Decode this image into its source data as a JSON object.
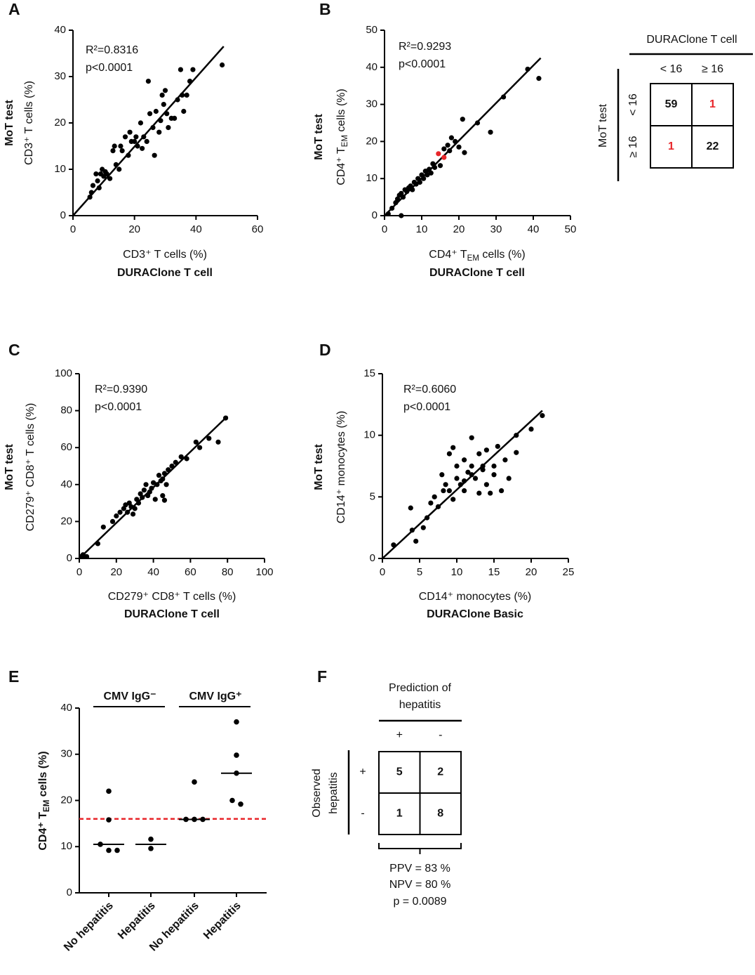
{
  "chart_data": [
    {
      "type": "scatter",
      "panel": "A",
      "annotations": [
        "R²=0.8316",
        "p<0.0001"
      ],
      "ylabel": [
        "MoT test",
        "CD3⁺ T cells (%)"
      ],
      "xlabel": [
        "CD3⁺ T cells (%)",
        "DURAClone T cell"
      ],
      "xlim": [
        0,
        60
      ],
      "xticks": [
        0,
        20,
        40,
        60
      ],
      "ylim": [
        0,
        40
      ],
      "yticks": [
        0,
        10,
        20,
        30,
        40
      ],
      "fit": {
        "x": [
          0,
          49
        ],
        "y": [
          0,
          36.5
        ]
      },
      "series": [
        {
          "color": "#000000",
          "x": [
            5.5,
            6,
            6.5,
            7.5,
            8,
            8.5,
            9,
            9.5,
            10,
            10.5,
            11,
            12,
            13,
            13.5,
            14,
            15,
            15.5,
            16,
            17,
            18,
            18.5,
            19,
            20,
            20.5,
            21,
            22,
            22.5,
            23,
            24,
            24.5,
            25,
            26,
            26.5,
            27,
            28,
            28.5,
            29,
            29.5,
            30,
            30.5,
            31,
            32,
            33,
            34,
            35,
            35.5,
            36,
            37,
            38,
            39,
            48.5
          ],
          "y": [
            4,
            5,
            6.5,
            9,
            7.5,
            6,
            9,
            10,
            8.5,
            9.5,
            9,
            8,
            14,
            15,
            11,
            10,
            15,
            14,
            17,
            13,
            18,
            16,
            16,
            17,
            15,
            20,
            14.5,
            17,
            16,
            29,
            22,
            19,
            13,
            22.5,
            18,
            20.5,
            26,
            24,
            27,
            22,
            19,
            21,
            21,
            25,
            31.5,
            26,
            22.5,
            26,
            29,
            31.5,
            32.5
          ]
        }
      ]
    },
    {
      "type": "scatter",
      "panel": "B",
      "annotations": [
        "R²=0.9293",
        "p<0.0001"
      ],
      "ylabel": [
        "MoT test",
        {
          "pre": "CD4⁺ T",
          "sub": "EM",
          "post": " cells (%)"
        }
      ],
      "xlabel": [
        {
          "pre": "CD4⁺ T",
          "sub": "EM",
          "post": " cells (%)"
        },
        "DURAClone T cell"
      ],
      "xlim": [
        0,
        50
      ],
      "xticks": [
        0,
        10,
        20,
        30,
        40,
        50
      ],
      "ylim": [
        0,
        50
      ],
      "yticks": [
        0,
        10,
        20,
        30,
        40,
        50
      ],
      "fit": {
        "x": [
          0,
          42
        ],
        "y": [
          0,
          42.5
        ]
      },
      "series": [
        {
          "color": "#000000",
          "x": [
            1,
            2,
            3,
            3.5,
            4,
            4.5,
            5,
            5.5,
            6,
            6.5,
            7,
            7.5,
            8,
            8.5,
            9,
            9.5,
            10,
            10.5,
            11,
            11.5,
            12,
            12.5,
            13,
            13.5,
            15,
            16,
            17,
            17.5,
            18,
            19,
            20,
            21,
            21.5,
            25,
            28.5,
            32,
            38.5,
            41.5,
            4.5
          ],
          "y": [
            0.5,
            2,
            3.5,
            4.5,
            5.5,
            6,
            5,
            7,
            6.5,
            7.5,
            8,
            7,
            9,
            8.5,
            10,
            9,
            11,
            10,
            12,
            11,
            12.5,
            11.5,
            14,
            13,
            13.5,
            18,
            19,
            17.5,
            21,
            20,
            18.5,
            26,
            17,
            25,
            22.5,
            32,
            39.5,
            37,
            0
          ]
        },
        {
          "color": "#e8262a",
          "x": [
            14.5,
            16
          ],
          "y": [
            16.7,
            15.7
          ]
        }
      ]
    },
    {
      "type": "scatter",
      "panel": "C",
      "annotations": [
        "R²=0.9390",
        "p<0.0001"
      ],
      "ylabel": [
        "MoT test",
        "CD279⁺ CD8⁺ T cells (%)"
      ],
      "xlabel": [
        "CD279⁺ CD8⁺ T cells (%)",
        "DURAClone T cell"
      ],
      "xlim": [
        0,
        100
      ],
      "xticks": [
        0,
        20,
        40,
        60,
        80,
        100
      ],
      "ylim": [
        0,
        100
      ],
      "yticks": [
        0,
        20,
        40,
        60,
        80,
        100
      ],
      "fit": {
        "x": [
          0,
          80
        ],
        "y": [
          0,
          77
        ]
      },
      "series": [
        {
          "color": "#000000",
          "x": [
            1,
            2,
            3,
            4,
            10,
            13,
            18,
            20,
            22,
            24,
            25,
            26,
            27,
            28,
            29,
            30,
            31,
            32,
            33,
            34,
            35,
            36,
            37,
            38,
            39,
            40,
            41,
            42,
            43,
            44,
            45,
            46,
            47,
            48,
            50,
            52,
            55,
            58,
            63,
            65,
            70,
            75,
            79,
            45,
            46
          ],
          "y": [
            1,
            2,
            1,
            1,
            8,
            17,
            20,
            23,
            25,
            27,
            29,
            25,
            30,
            28,
            24,
            27,
            32,
            30,
            35,
            33,
            37,
            40,
            34,
            36,
            38,
            41,
            32,
            40,
            45,
            42,
            43,
            46,
            40,
            48,
            50,
            52,
            55,
            54,
            63,
            60,
            65,
            63,
            76,
            34,
            31.5
          ]
        }
      ]
    },
    {
      "type": "scatter",
      "panel": "D",
      "annotations": [
        "R²=0.6060",
        "p<0.0001"
      ],
      "ylabel": [
        "MoT test",
        "CD14⁺ monocytes (%)"
      ],
      "xlabel": [
        "CD14⁺ monocytes (%)",
        "DURAClone Basic"
      ],
      "xlim": [
        0,
        25
      ],
      "xticks": [
        0,
        5,
        10,
        15,
        20,
        25
      ],
      "ylim": [
        0,
        15
      ],
      "yticks": [
        0,
        5,
        10,
        15
      ],
      "fit": {
        "x": [
          0,
          21.5
        ],
        "y": [
          0,
          12
        ]
      },
      "series": [
        {
          "color": "#000000",
          "x": [
            1.5,
            3.8,
            4,
            4.5,
            5.5,
            6,
            6.5,
            7,
            7.5,
            8,
            8.2,
            8.5,
            9,
            9,
            9.5,
            10,
            10,
            10.5,
            11,
            11,
            11.5,
            12,
            12,
            12.5,
            13,
            13,
            13.5,
            14,
            14,
            14.5,
            15,
            15,
            15.5,
            16,
            16.5,
            17,
            18,
            18,
            20,
            21.5,
            9.5,
            12,
            11,
            13.5
          ],
          "y": [
            1.1,
            4.1,
            2.3,
            1.4,
            2.5,
            3.3,
            4.5,
            5,
            4.2,
            6.8,
            5.5,
            6,
            5.5,
            8.5,
            4.8,
            6.5,
            7.5,
            6,
            8,
            5.5,
            7,
            7.5,
            9.8,
            6.5,
            8.5,
            5.3,
            7.5,
            6,
            8.8,
            5.3,
            7.5,
            6.8,
            9.1,
            5.5,
            8,
            6.5,
            10,
            8.6,
            10.5,
            11.6,
            9,
            6.8,
            6.3,
            7.2
          ]
        }
      ]
    },
    {
      "type": "dot",
      "panel": "E",
      "ylabel": {
        "pre": "CD4⁺ T",
        "sub": "EM",
        "post": " cells (%)"
      },
      "ylim": [
        0,
        40
      ],
      "yticks": [
        0,
        10,
        20,
        30,
        40
      ],
      "threshold": 16,
      "threshold_color": "#e8262a",
      "color": "#000000",
      "groups": [
        {
          "label": "CMV IgG⁻",
          "categories": [
            "No hepatitis",
            "Hepatitis"
          ],
          "values": [
            [
              22,
              15.8,
              10.5,
              9.2,
              9.2
            ],
            [
              11.6,
              9.6
            ]
          ],
          "medians": [
            10.5,
            10.5
          ]
        },
        {
          "label": "CMV IgG⁺",
          "categories": [
            "No hepatitis",
            "Hepatitis"
          ],
          "values": [
            [
              24,
              15.9,
              15.9,
              15.9
            ],
            [
              37,
              29.8,
              25.9,
              20,
              19.2
            ]
          ],
          "medians": [
            15.9,
            25.9
          ]
        }
      ]
    }
  ],
  "tables": [
    {
      "header": [
        "DURAClone T cell"
      ],
      "columns": [
        "< 16",
        "≥ 16"
      ],
      "row_header": [
        "MoT test"
      ],
      "rows": [
        "< 16",
        "≥ 16"
      ],
      "cells": [
        [
          59,
          1
        ],
        [
          1,
          22
        ]
      ],
      "cell_colors": [
        [
          "#111111",
          "#e8262a"
        ],
        [
          "#e8262a",
          "#111111"
        ]
      ]
    },
    {
      "panel": "F",
      "header": [
        "Prediction of",
        "hepatitis"
      ],
      "columns": [
        "+",
        "-"
      ],
      "row_header": [
        "Observed",
        "hepatitis"
      ],
      "rows": [
        "+",
        "-"
      ],
      "cells": [
        [
          5,
          2
        ],
        [
          1,
          8
        ]
      ],
      "cell_colors": [
        [
          "#111111",
          "#111111"
        ],
        [
          "#111111",
          "#111111"
        ]
      ],
      "footer": [
        "PPV = 83 %",
        "NPV = 80 %",
        "p = 0.0089"
      ]
    }
  ]
}
